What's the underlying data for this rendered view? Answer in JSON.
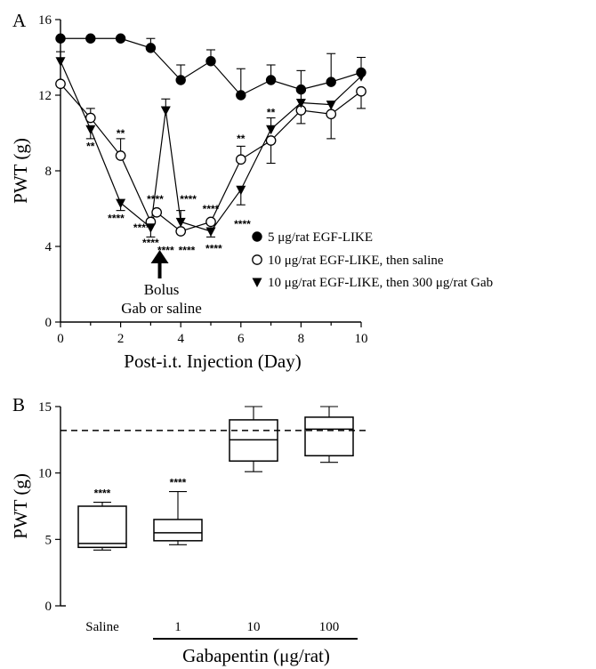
{
  "chart_data": [
    {
      "panel": "A",
      "type": "line",
      "xlabel": "Post-i.t. Injection (Day)",
      "ylabel": "PWT (g)",
      "xlim": [
        0,
        10
      ],
      "ylim": [
        0,
        16
      ],
      "xticks": [
        0,
        2,
        4,
        6,
        8,
        10
      ],
      "yticks": [
        0,
        4,
        8,
        12,
        16
      ],
      "x": [
        0,
        1,
        2,
        3,
        4,
        5,
        6,
        7,
        8,
        9,
        10
      ],
      "series": [
        {
          "name": "5 μg/rat EGF-LIKE",
          "marker": "filled-circle",
          "x": [
            0,
            1,
            2,
            3,
            4,
            5,
            6,
            7,
            8,
            9,
            10
          ],
          "values": [
            15,
            15,
            15,
            14.5,
            12.8,
            13.8,
            12.0,
            12.8,
            12.3,
            12.7,
            13.2
          ],
          "err_up": [
            0,
            0,
            0,
            0.5,
            0.8,
            0.6,
            1.4,
            0.8,
            1.0,
            1.5,
            0.8
          ],
          "err_down": [
            0,
            0,
            0,
            0,
            0,
            0,
            0,
            0,
            0,
            0,
            0
          ]
        },
        {
          "name": "10 μg/rat EGF-LIKE, then saline",
          "marker": "open-circle",
          "x": [
            0,
            1,
            2,
            3,
            3.2,
            4,
            5,
            6,
            7,
            8,
            9,
            10
          ],
          "values": [
            12.6,
            10.8,
            8.8,
            5.3,
            5.8,
            4.8,
            5.3,
            8.6,
            9.6,
            11.2,
            11.0,
            12.2
          ],
          "err_up": [
            0,
            0.5,
            0.9,
            0,
            0,
            0,
            0,
            0.7,
            0,
            0,
            0,
            0
          ],
          "err_down": [
            0,
            0,
            0,
            0,
            0,
            0,
            0,
            0,
            1.2,
            0.7,
            1.3,
            0.9
          ]
        },
        {
          "name": "10 μg/rat EGF-LIKE, then 300 μg/rat Gab",
          "marker": "filled-triangle",
          "x": [
            0,
            1,
            2,
            3,
            3.5,
            4,
            5,
            6,
            7,
            8,
            9,
            10
          ],
          "values": [
            13.8,
            10.2,
            6.3,
            5.0,
            11.2,
            5.3,
            4.8,
            7.0,
            10.2,
            11.6,
            11.5,
            13.0
          ],
          "err_up": [
            0.5,
            0,
            0,
            0,
            0.6,
            0.6,
            0,
            0,
            0.6,
            0.6,
            0,
            0
          ],
          "err_down": [
            0,
            0.5,
            0.4,
            0.5,
            0,
            0,
            0.3,
            0.8,
            0,
            0,
            0,
            0
          ]
        }
      ],
      "significance": [
        {
          "text": "**",
          "x": 1,
          "y": 9.1
        },
        {
          "text": "**",
          "x": 2,
          "y": 9.8
        },
        {
          "text": "****",
          "x": 1.85,
          "y": 5.3
        },
        {
          "text": "****",
          "x": 2.7,
          "y": 4.8
        },
        {
          "text": "****",
          "x": 3.15,
          "y": 6.3
        },
        {
          "text": "****",
          "x": 3.0,
          "y": 4.0
        },
        {
          "text": "****",
          "x": 3.5,
          "y": 3.6
        },
        {
          "text": "****",
          "x": 4.25,
          "y": 6.3
        },
        {
          "text": "****",
          "x": 4.2,
          "y": 3.6
        },
        {
          "text": "****",
          "x": 5.0,
          "y": 5.8
        },
        {
          "text": "****",
          "x": 5.1,
          "y": 3.7
        },
        {
          "text": "**",
          "x": 6.0,
          "y": 9.5
        },
        {
          "text": "****",
          "x": 6.05,
          "y": 5.0
        },
        {
          "text": "**",
          "x": 7.0,
          "y": 10.9
        }
      ],
      "annotation": {
        "line1": "Bolus",
        "line2": "Gab or saline",
        "arrow_x": 3.3
      }
    },
    {
      "panel": "B",
      "type": "box",
      "xlabel": "Gabapentin (μg/rat)",
      "ylabel": "PWT (g)",
      "ylim": [
        0,
        15
      ],
      "yticks": [
        0,
        5,
        10,
        15
      ],
      "categories": [
        "Saline",
        "1",
        "10",
        "100"
      ],
      "boxes": [
        {
          "min": 4.2,
          "q1": 4.4,
          "median": 4.7,
          "q3": 7.5,
          "max": 7.8,
          "label": "****"
        },
        {
          "min": 4.6,
          "q1": 4.9,
          "median": 5.5,
          "q3": 6.5,
          "max": 8.6,
          "label": "****"
        },
        {
          "min": 10.1,
          "q1": 10.9,
          "median": 12.5,
          "q3": 14.0,
          "max": 15.0,
          "label": ""
        },
        {
          "min": 10.8,
          "q1": 11.3,
          "median": 13.3,
          "q3": 14.2,
          "max": 15.0,
          "label": ""
        }
      ],
      "reference_line": 13.2
    }
  ],
  "panel_labels": {
    "a": "A",
    "b": "B"
  }
}
